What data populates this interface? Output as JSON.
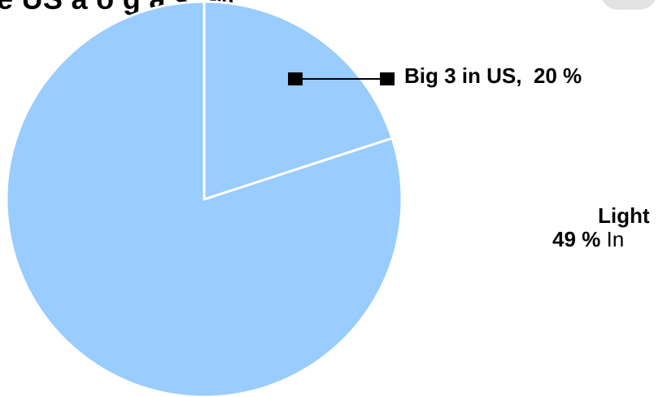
{
  "header": {
    "title_fragment": "e US a    o   g    a   s,  %"
  },
  "chart_data": {
    "type": "pie",
    "slices": [
      {
        "label": "Big 3 in US",
        "value": 20,
        "value_label": "20 %",
        "color": "#99ccff"
      },
      {
        "label": "",
        "value": 80,
        "value_label": "",
        "color": "#99ccff"
      }
    ],
    "annotations": {
      "big3_label": "Big 3 in US,  20 %",
      "right_line1": "Light",
      "right_line2_bold": "49 %",
      "right_line2_rest": " In"
    },
    "edge_color": "#ffffff",
    "leader_color": "#000000"
  }
}
